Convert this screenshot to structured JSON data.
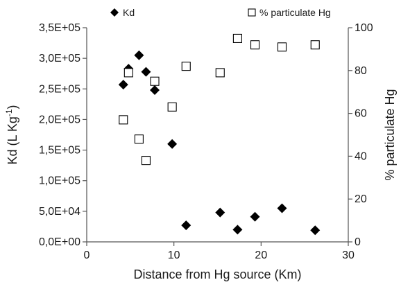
{
  "chart_data": {
    "type": "scatter",
    "title": "",
    "xlabel": "Distance from Hg source (Km)",
    "ylabel_left": {
      "main": "Kd (L Kg",
      "sup": "-1",
      "end": ")"
    },
    "ylabel_right": "% particulate Hg",
    "xlim": [
      0,
      30
    ],
    "ylim_left": [
      0,
      350000
    ],
    "ylim_right": [
      0,
      100
    ],
    "x_ticks": [
      0,
      10,
      20,
      30
    ],
    "x_tick_labels": [
      "0",
      "10",
      "20",
      "30"
    ],
    "y_left_ticks": [
      0,
      50000,
      100000,
      150000,
      200000,
      250000,
      300000,
      350000
    ],
    "y_left_tick_labels": [
      "0,0E+00",
      "5,0E+04",
      "1,0E+05",
      "1,5E+05",
      "2,0E+05",
      "2,5E+05",
      "3,0E+05",
      "3,5E+05"
    ],
    "y_right_ticks": [
      0,
      20,
      40,
      60,
      80,
      100
    ],
    "y_right_tick_labels": [
      "0",
      "20",
      "40",
      "60",
      "80",
      "100"
    ],
    "grid": false,
    "legend_position": "top",
    "series": [
      {
        "name": "Kd",
        "axis": "left",
        "marker": "filled-diamond",
        "color": "#000000",
        "x": [
          4.2,
          4.8,
          6.0,
          6.8,
          7.8,
          9.8,
          11.4,
          15.3,
          17.3,
          19.3,
          22.4,
          26.2
        ],
        "y": [
          257000,
          283000,
          305000,
          278000,
          248000,
          160000,
          27000,
          48000,
          20000,
          41000,
          55000,
          19000
        ]
      },
      {
        "name": "% particulate Hg",
        "axis": "right",
        "marker": "open-square",
        "color": "#000000",
        "x": [
          4.2,
          4.8,
          6.0,
          6.8,
          7.8,
          9.8,
          11.4,
          15.3,
          17.3,
          19.3,
          22.4,
          26.2
        ],
        "y": [
          57,
          79,
          48,
          38,
          75,
          63,
          82,
          79,
          95,
          92,
          91,
          92
        ]
      }
    ]
  }
}
